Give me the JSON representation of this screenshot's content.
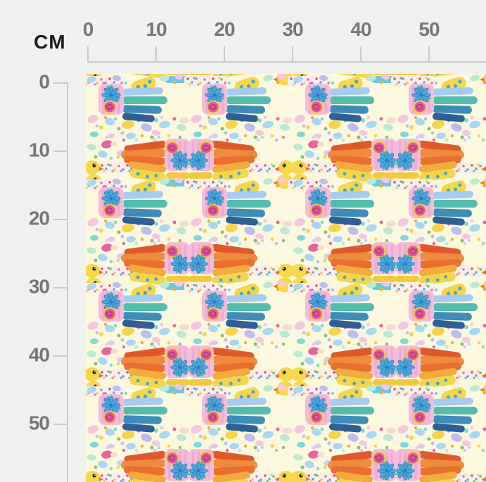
{
  "ruler": {
    "unit_label": "CM",
    "top_tick_labels": [
      "0",
      "10",
      "20",
      "30",
      "40",
      "50"
    ],
    "left_tick_labels": [
      "0",
      "10",
      "20",
      "30",
      "40",
      "50"
    ]
  },
  "fabric_pattern": {
    "palette": {
      "page_background": "#F0F0EE",
      "ruler_line": "#C9C9C9",
      "ruler_text": "#767676",
      "unit_text": "#1c1c1c",
      "fabric_cream": "#FCF8DE",
      "pink_square": "#F3BCDB",
      "pink_square_stripe": "#EDABD3",
      "flower_blue": "#47A7DC",
      "flower_outline": "#2E7AB0",
      "flower_teal": "#49B8A8",
      "swirl_magenta": "#E0569F",
      "swirl_dark": "#A83577",
      "ring_yellow": "#F2C93D",
      "wing_cool": [
        "#A6CBF0",
        "#53BCAE",
        "#3E8CB8",
        "#2E5F95"
      ],
      "wing_warm": [
        "#DE5A2D",
        "#EE8B3D",
        "#E96F2F",
        "#F2AB3C"
      ],
      "accent_yellow": "#F5D64B",
      "head_yellow": "#F7D84C",
      "beak_orange": "#E8742D",
      "blob_dot_blue": "#47A5CC",
      "confetti_strip": "#F7EFE9",
      "confetti_dots": [
        "#DD4F4A",
        "#4FA8DC",
        "#67B85E",
        "#EFC83D",
        "#E668A8",
        "#8F7FD6"
      ],
      "scatter": [
        "#A9D7F3",
        "#BBBEEC",
        "#F6C6E0",
        "#E9619F",
        "#F4D44E",
        "#7ED9D2",
        "#BDE9D2",
        "#82C172",
        "#F0AC3E",
        "#D9CBF0",
        "#F3DCCB"
      ]
    }
  }
}
